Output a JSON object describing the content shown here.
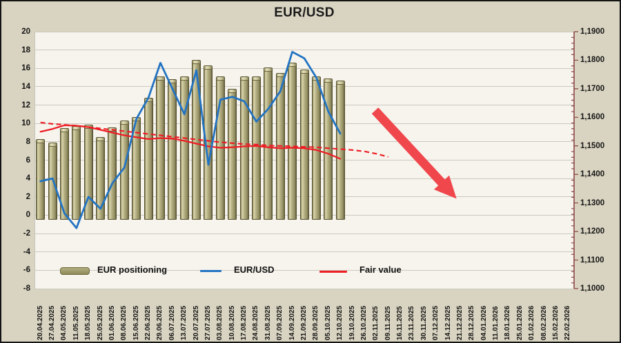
{
  "title": "EUR/USD",
  "legend": {
    "positioning_label": "EUR positioning",
    "eurusd_label": "EUR/USD",
    "fair_value_label": "Fair value"
  },
  "left_axis": {
    "labels": [
      "20",
      "18",
      "16",
      "14",
      "12",
      "10",
      "8",
      "6",
      "4",
      "2",
      "0",
      "-2",
      "-4",
      "-6",
      "-8"
    ],
    "max": 20,
    "min": -8,
    "step": 2
  },
  "right_axis": {
    "labels": [
      "1,1900",
      "1,1800",
      "1,1700",
      "1,1600",
      "1,1500",
      "1,1400",
      "1,1300",
      "1,1200",
      "1,1100",
      "1,1000"
    ],
    "max": 1.19,
    "min": 1.1,
    "step": 0.01
  },
  "colors": {
    "background": "#d9d4c1",
    "plot_background": "#f6f4ed",
    "gridline": "#cac8be",
    "bar": "#aaa575",
    "eurusd_line": "#2273c2",
    "fair_value_line": "#ee1c24",
    "arrow": "#f0474d",
    "right_axis_line": "#8b4240",
    "text": "#141414"
  },
  "chart_data": {
    "type": "bar",
    "title": "EUR/USD",
    "grid": "horizontal",
    "legend_position": "bottom-inside",
    "left_axis_range": [
      -8,
      20
    ],
    "right_axis_range": [
      1.1,
      1.19
    ],
    "categories": [
      "20.04.2025",
      "27.04.2025",
      "04.05.2025",
      "11.05.2025",
      "18.05.2025",
      "25.05.2025",
      "01.06.2025",
      "08.06.2025",
      "15.06.2025",
      "22.06.2025",
      "29.06.2025",
      "06.07.2025",
      "13.07.2025",
      "20.07.2025",
      "27.07.2025",
      "03.08.2025",
      "10.08.2025",
      "17.08.2025",
      "24.08.2025",
      "31.08.2025",
      "07.09.2025",
      "14.09.2025",
      "21.09.2025",
      "28.09.2025",
      "05.10.2025",
      "12.10.2025",
      "19.10.2025",
      "26.10.2025",
      "02.11.2025",
      "09.11.2025",
      "16.11.2025",
      "23.11.2025",
      "30.11.2025",
      "07.12.2025",
      "14.12.2025",
      "21.12.2025",
      "28.12.2025",
      "04.01.2026",
      "11.01.2026",
      "18.01.2026",
      "25.01.2026",
      "01.02.2026",
      "08.02.2026",
      "15.02.2026",
      "22.02.2026"
    ],
    "series": [
      {
        "name": "EUR positioning",
        "type": "bar",
        "axis": "left",
        "color": "#aaa575",
        "values": [
          8.3,
          7.9,
          9.5,
          9.7,
          9.85,
          8.5,
          9.6,
          10.3,
          10.7,
          12.8,
          15.1,
          14.8,
          15.1,
          16.9,
          16.3,
          15.1,
          13.8,
          15.1,
          15.1,
          16.1,
          15.5,
          16.6,
          15.9,
          15.1,
          14.9,
          14.7
        ]
      },
      {
        "name": "EUR/USD",
        "type": "line",
        "axis": "right",
        "color": "#2273c2",
        "values_left_scale": [
          3.7,
          4.0,
          0.2,
          -1.4,
          2.0,
          0.7,
          3.5,
          5.2,
          10.5,
          12.8,
          16.6,
          13.8,
          11.0,
          15.8,
          5.5,
          12.6,
          12.9,
          12.4,
          10.2,
          11.6,
          13.5,
          17.8,
          17.1,
          15.0,
          11.3,
          8.9
        ]
      },
      {
        "name": "Fair value",
        "type": "line",
        "axis": "left",
        "style": "solid",
        "color": "#ee1c24",
        "values_left_scale": [
          9.1,
          9.4,
          9.8,
          9.75,
          9.6,
          9.3,
          9.0,
          8.7,
          8.5,
          8.3,
          8.4,
          8.35,
          8.1,
          7.8,
          7.5,
          7.35,
          7.4,
          7.5,
          7.55,
          7.4,
          7.3,
          7.35,
          7.3,
          7.1,
          6.7,
          6.15
        ]
      },
      {
        "name": "Fair value forecast",
        "type": "line",
        "axis": "left",
        "style": "dashed",
        "color": "#ee1c24",
        "values_left_scale": [
          10.1,
          9.95,
          9.85,
          9.75,
          9.6,
          9.45,
          9.3,
          9.15,
          9.0,
          8.85,
          8.7,
          8.55,
          8.4,
          8.25,
          8.1,
          7.95,
          7.85,
          7.75,
          7.7,
          7.6,
          7.55,
          7.5,
          7.45,
          7.4,
          7.3,
          7.2,
          7.1,
          6.95,
          6.7,
          6.35
        ]
      }
    ],
    "annotation": {
      "type": "arrow",
      "direction": "down-right",
      "color": "#f0474d",
      "from": {
        "category_index": 27.9,
        "value_left_scale": 11.4
      },
      "to": {
        "category_index": 34.7,
        "value_left_scale": 1.8
      }
    }
  }
}
